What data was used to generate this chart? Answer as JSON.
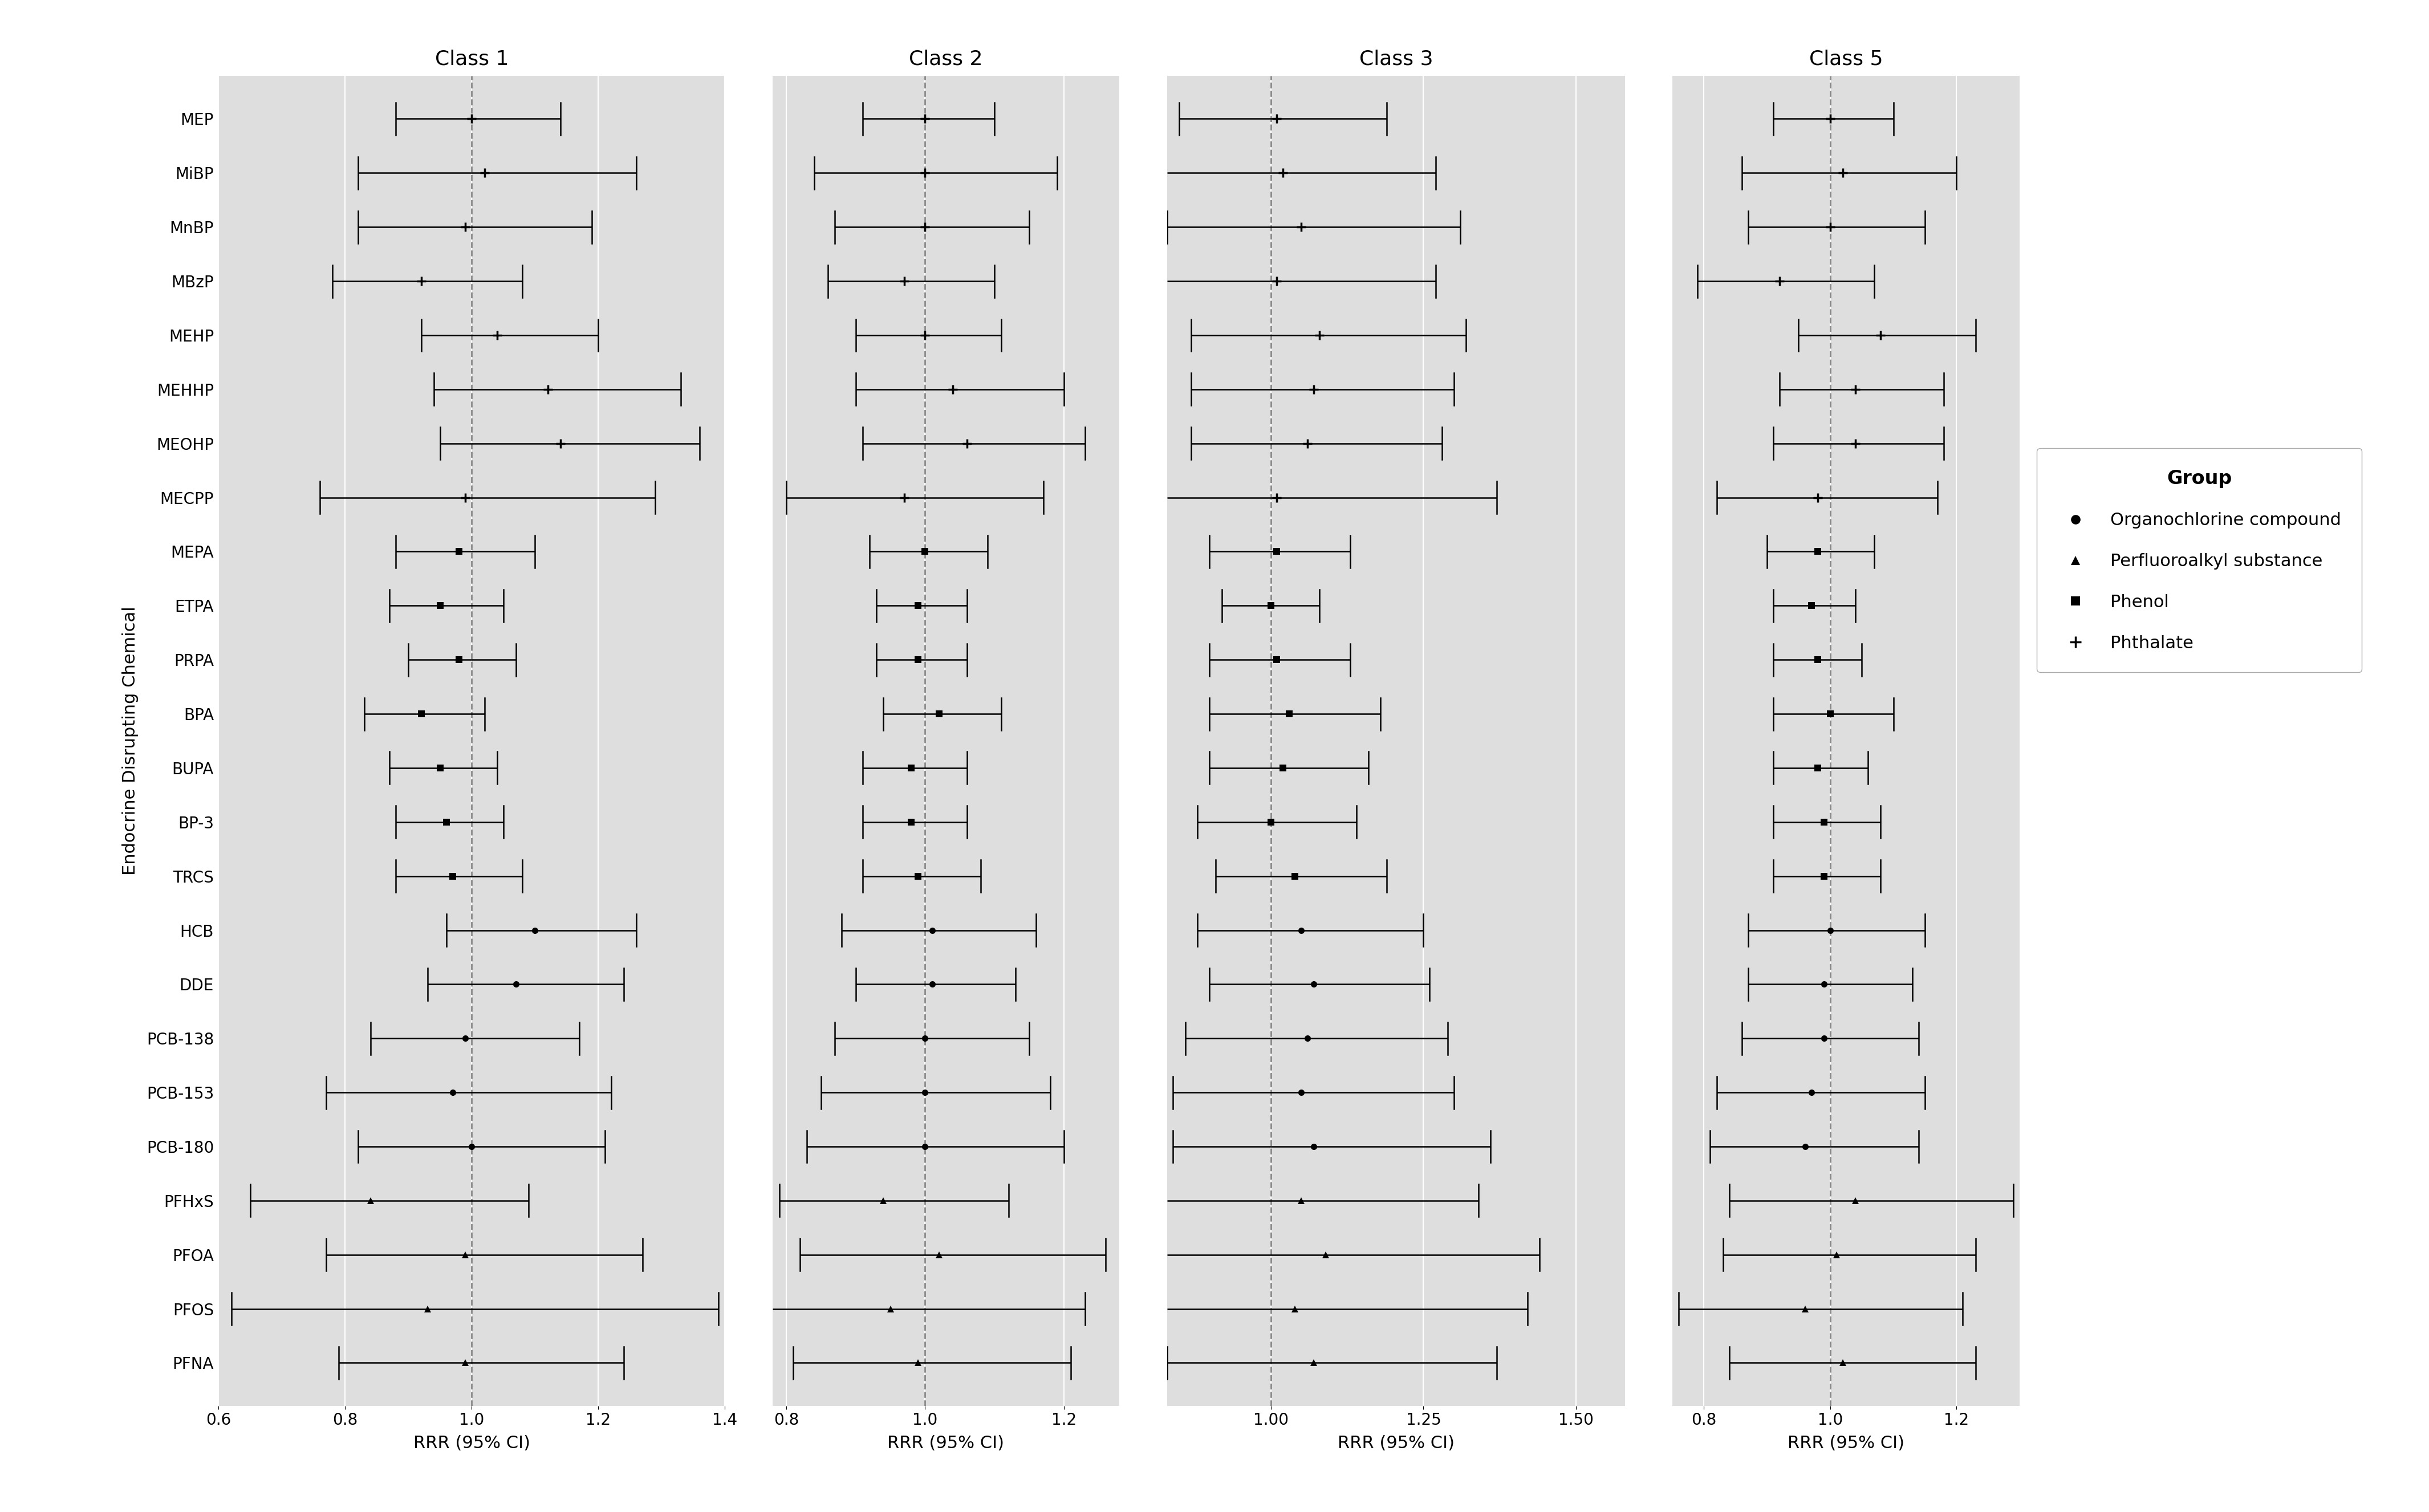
{
  "chemicals": [
    "MEP",
    "MiBP",
    "MnBP",
    "MBzP",
    "MEHP",
    "MEHHP",
    "MEOHP",
    "MECPP",
    "MEPA",
    "ETPA",
    "PRPA",
    "BPA",
    "BUPA",
    "BP-3",
    "TRCS",
    "HCB",
    "DDE",
    "PCB-138",
    "PCB-153",
    "PCB-180",
    "PFHxS",
    "PFOA",
    "PFOS",
    "PFNA"
  ],
  "groups": [
    "Phthalate",
    "Phthalate",
    "Phthalate",
    "Phthalate",
    "Phthalate",
    "Phthalate",
    "Phthalate",
    "Phthalate",
    "Phenol",
    "Phenol",
    "Phenol",
    "Phenol",
    "Phenol",
    "Phenol",
    "Phenol",
    "Organochlorine compound",
    "Organochlorine compound",
    "Organochlorine compound",
    "Organochlorine compound",
    "Organochlorine compound",
    "Perfluoroalkyl substance",
    "Perfluoroalkyl substance",
    "Perfluoroalkyl substance",
    "Perfluoroalkyl substance"
  ],
  "class1": {
    "est": [
      1.0,
      1.02,
      0.99,
      0.92,
      1.04,
      1.12,
      1.14,
      0.99,
      0.98,
      0.95,
      0.98,
      0.92,
      0.95,
      0.96,
      0.97,
      1.1,
      1.07,
      0.99,
      0.97,
      1.0,
      0.84,
      0.99,
      0.93,
      0.99
    ],
    "lo": [
      0.88,
      0.82,
      0.82,
      0.78,
      0.92,
      0.94,
      0.95,
      0.76,
      0.88,
      0.87,
      0.9,
      0.83,
      0.87,
      0.88,
      0.88,
      0.96,
      0.93,
      0.84,
      0.77,
      0.82,
      0.65,
      0.77,
      0.62,
      0.79
    ],
    "hi": [
      1.14,
      1.26,
      1.19,
      1.08,
      1.2,
      1.33,
      1.36,
      1.29,
      1.1,
      1.05,
      1.07,
      1.02,
      1.04,
      1.05,
      1.08,
      1.26,
      1.24,
      1.17,
      1.22,
      1.21,
      1.09,
      1.27,
      1.39,
      1.24
    ]
  },
  "class2": {
    "est": [
      1.0,
      1.0,
      1.0,
      0.97,
      1.0,
      1.04,
      1.06,
      0.97,
      1.0,
      0.99,
      0.99,
      1.02,
      0.98,
      0.98,
      0.99,
      1.01,
      1.01,
      1.0,
      1.0,
      1.0,
      0.94,
      1.02,
      0.95,
      0.99
    ],
    "lo": [
      0.91,
      0.84,
      0.87,
      0.86,
      0.9,
      0.9,
      0.91,
      0.8,
      0.92,
      0.93,
      0.93,
      0.94,
      0.91,
      0.91,
      0.91,
      0.88,
      0.9,
      0.87,
      0.85,
      0.83,
      0.79,
      0.82,
      0.74,
      0.81
    ],
    "hi": [
      1.1,
      1.19,
      1.15,
      1.1,
      1.11,
      1.2,
      1.23,
      1.17,
      1.09,
      1.06,
      1.06,
      1.11,
      1.06,
      1.06,
      1.08,
      1.16,
      1.13,
      1.15,
      1.18,
      1.2,
      1.12,
      1.26,
      1.23,
      1.21
    ]
  },
  "class3": {
    "est": [
      1.01,
      1.02,
      1.05,
      1.01,
      1.08,
      1.07,
      1.06,
      1.01,
      1.01,
      1.0,
      1.01,
      1.03,
      1.02,
      1.0,
      1.04,
      1.05,
      1.07,
      1.06,
      1.05,
      1.07,
      1.05,
      1.09,
      1.04,
      1.07
    ],
    "lo": [
      0.85,
      0.82,
      0.83,
      0.8,
      0.87,
      0.87,
      0.87,
      0.75,
      0.9,
      0.92,
      0.9,
      0.9,
      0.9,
      0.88,
      0.91,
      0.88,
      0.9,
      0.86,
      0.84,
      0.84,
      0.82,
      0.82,
      0.76,
      0.83
    ],
    "hi": [
      1.19,
      1.27,
      1.31,
      1.27,
      1.32,
      1.3,
      1.28,
      1.37,
      1.13,
      1.08,
      1.13,
      1.18,
      1.16,
      1.14,
      1.19,
      1.25,
      1.26,
      1.29,
      1.3,
      1.36,
      1.34,
      1.44,
      1.42,
      1.37
    ]
  },
  "class5": {
    "est": [
      1.0,
      1.02,
      1.0,
      0.92,
      1.08,
      1.04,
      1.04,
      0.98,
      0.98,
      0.97,
      0.98,
      1.0,
      0.98,
      0.99,
      0.99,
      1.0,
      0.99,
      0.99,
      0.97,
      0.96,
      1.04,
      1.01,
      0.96,
      1.02
    ],
    "lo": [
      0.91,
      0.86,
      0.87,
      0.79,
      0.95,
      0.92,
      0.91,
      0.82,
      0.9,
      0.91,
      0.91,
      0.91,
      0.91,
      0.91,
      0.91,
      0.87,
      0.87,
      0.86,
      0.82,
      0.81,
      0.84,
      0.83,
      0.76,
      0.84
    ],
    "hi": [
      1.1,
      1.2,
      1.15,
      1.07,
      1.23,
      1.18,
      1.18,
      1.17,
      1.07,
      1.04,
      1.05,
      1.1,
      1.06,
      1.08,
      1.08,
      1.15,
      1.13,
      1.14,
      1.15,
      1.14,
      1.29,
      1.23,
      1.21,
      1.23
    ]
  },
  "panels": [
    {
      "title": "Class 1",
      "key": "class1",
      "xlim": [
        0.6,
        1.4
      ],
      "xticks": [
        0.6,
        0.8,
        1.0,
        1.2,
        1.4
      ],
      "xticklabels": [
        "0.6",
        "0.8",
        "1.0",
        "1.2",
        "1.4"
      ]
    },
    {
      "title": "Class 2",
      "key": "class2",
      "xlim": [
        0.78,
        1.28
      ],
      "xticks": [
        0.8,
        1.0,
        1.2
      ],
      "xticklabels": [
        "0.8",
        "1.0",
        "1.2"
      ]
    },
    {
      "title": "Class 3",
      "key": "class3",
      "xlim": [
        0.83,
        1.58
      ],
      "xticks": [
        1.0,
        1.25,
        1.5
      ],
      "xticklabels": [
        "1.00",
        "1.25",
        "1.50"
      ]
    },
    {
      "title": "Class 5",
      "key": "class5",
      "xlim": [
        0.75,
        1.3
      ],
      "xticks": [
        0.8,
        1.0,
        1.2
      ],
      "xticklabels": [
        "0.8",
        "1.0",
        "1.2"
      ]
    }
  ],
  "marker_map": {
    "Organochlorine compound": "o",
    "Perfluoroalkyl substance": "^",
    "Phenol": "s",
    "Phthalate": "P"
  },
  "group_order": [
    "Organochlorine compound",
    "Perfluoroalkyl substance",
    "Phenol",
    "Phthalate"
  ],
  "bg_color": "#dedede",
  "fig_bg": "white",
  "line_color": "black",
  "marker_size": 8,
  "title_fontsize": 26,
  "label_fontsize": 22,
  "tick_fontsize": 20,
  "ytick_fontsize": 20,
  "legend_fontsize": 22,
  "legend_title_fontsize": 24,
  "ylabel": "Endocrine Disrupting Chemical",
  "xlabel": "RRR (95% CI)",
  "dashed_line_color": "#888888",
  "grid_color": "white",
  "grid_lw": 1.5
}
